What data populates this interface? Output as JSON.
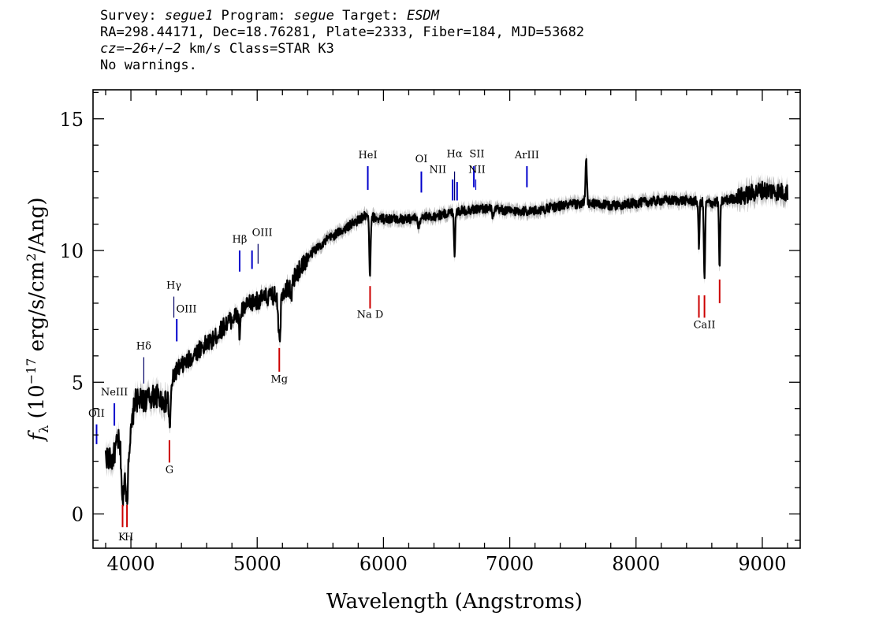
{
  "header": {
    "line1": [
      {
        "text": "Survey: ",
        "italic": false
      },
      {
        "text": "segue1",
        "italic": true
      },
      {
        "text": " Program: ",
        "italic": false
      },
      {
        "text": "segue",
        "italic": true
      },
      {
        "text": " Target: ",
        "italic": false
      },
      {
        "text": "ESDM",
        "italic": true
      }
    ],
    "line2": "RA=298.44171, Dec=18.76281, Plate=2333, Fiber=184, MJD=53682",
    "line3": [
      {
        "text": "cz=",
        "italic": true
      },
      {
        "text": "−26",
        "italic": true
      },
      {
        "text": "+/",
        "italic": false
      },
      {
        "text": "−2",
        "italic": true
      },
      {
        "text": " km/s Class=STAR K3",
        "italic": false
      }
    ],
    "line4": "No warnings."
  },
  "colors": {
    "flux": "#000000",
    "error_band": "#b4b4b4",
    "emission_marker": "#0000cc",
    "absorption_marker": "#cc0000"
  },
  "chart_data": {
    "type": "line",
    "xlabel": "Wavelength (Angstroms)",
    "ylabel": "f_λ (10^-17 erg/s/cm^2/Ang)",
    "ylabel_parts": {
      "f": "f",
      "sub": "λ",
      "pre": " (10",
      "sup1": "−17",
      "mid": " erg/s/cm",
      "sup2": "2",
      "post": "/Ang)"
    },
    "xlim": [
      3700,
      9300
    ],
    "ylim": [
      -1.3,
      16.1
    ],
    "xticks": [
      4000,
      5000,
      6000,
      7000,
      8000,
      9000
    ],
    "yticks": [
      0,
      5,
      10,
      15
    ],
    "x_minor_step": 200,
    "y_minor_step": 1,
    "spectrum_range": [
      3800,
      9200
    ],
    "continuum": [
      [
        3800,
        2.2
      ],
      [
        3850,
        2.0
      ],
      [
        3900,
        2.8
      ],
      [
        3950,
        1.5
      ],
      [
        4000,
        3.0
      ],
      [
        4030,
        4.3
      ],
      [
        4100,
        4.3
      ],
      [
        4200,
        4.5
      ],
      [
        4280,
        4.2
      ],
      [
        4350,
        5.4
      ],
      [
        4450,
        5.8
      ],
      [
        4550,
        6.3
      ],
      [
        4650,
        6.6
      ],
      [
        4750,
        7.2
      ],
      [
        4850,
        7.6
      ],
      [
        4950,
        8.0
      ],
      [
        5050,
        8.2
      ],
      [
        5150,
        8.3
      ],
      [
        5250,
        8.6
      ],
      [
        5350,
        9.4
      ],
      [
        5450,
        10.0
      ],
      [
        5550,
        10.4
      ],
      [
        5650,
        10.7
      ],
      [
        5750,
        11.0
      ],
      [
        5850,
        11.3
      ],
      [
        6000,
        11.2
      ],
      [
        6200,
        11.2
      ],
      [
        6400,
        11.3
      ],
      [
        6600,
        11.5
      ],
      [
        6800,
        11.6
      ],
      [
        7000,
        11.5
      ],
      [
        7200,
        11.5
      ],
      [
        7400,
        11.7
      ],
      [
        7600,
        11.8
      ],
      [
        7800,
        11.7
      ],
      [
        8000,
        11.8
      ],
      [
        8200,
        11.9
      ],
      [
        8400,
        11.9
      ],
      [
        8600,
        11.8
      ],
      [
        8800,
        12.0
      ],
      [
        9000,
        12.3
      ],
      [
        9200,
        12.2
      ]
    ],
    "features": [
      {
        "x": 3934,
        "depth": 1.7,
        "width": 9
      },
      {
        "x": 3969,
        "depth": 1.7,
        "width": 9
      },
      {
        "x": 4308,
        "depth": 1.3,
        "width": 10
      },
      {
        "x": 4861,
        "depth": 0.9,
        "width": 8
      },
      {
        "x": 5172,
        "depth": 1.3,
        "width": 10
      },
      {
        "x": 5183,
        "depth": 1.2,
        "width": 6
      },
      {
        "x": 5270,
        "depth": 0.6,
        "width": 8
      },
      {
        "x": 5893,
        "depth": 2.2,
        "width": 8
      },
      {
        "x": 6563,
        "depth": 1.7,
        "width": 6
      },
      {
        "x": 8498,
        "depth": 1.8,
        "width": 6
      },
      {
        "x": 8542,
        "depth": 3.0,
        "width": 7
      },
      {
        "x": 8662,
        "depth": 2.5,
        "width": 7
      },
      {
        "x": 7605,
        "depth": -1.6,
        "width": 8
      },
      {
        "x": 6280,
        "depth": 0.4,
        "width": 8
      },
      {
        "x": 6870,
        "depth": 0.3,
        "width": 10
      }
    ],
    "emission_lines": [
      {
        "label": "OII",
        "x": 3728,
        "y0": 2.65,
        "y1": 3.4,
        "lx": 3728,
        "ly": 3.7
      },
      {
        "label": "NeIII",
        "x": 3869,
        "y0": 3.35,
        "y1": 4.2,
        "lx": 3869,
        "ly": 4.5
      },
      {
        "label": "Hδ",
        "x": 4102,
        "y0": 4.95,
        "y1": 5.95,
        "lx": 4102,
        "ly": 6.25
      },
      {
        "label": "Hγ",
        "x": 4340,
        "y0": 7.45,
        "y1": 8.25,
        "lx": 4340,
        "ly": 8.55
      },
      {
        "label": "OIII",
        "x": 4363,
        "y0": 6.55,
        "y1": 7.4,
        "lx": 4440,
        "ly": 7.65
      },
      {
        "label": "Hβ",
        "x": 4861,
        "y0": 9.2,
        "y1": 10.0,
        "lx": 4861,
        "ly": 10.3
      },
      {
        "label": "OIII",
        "x": 4959,
        "y0": 9.3,
        "y1": 10.0,
        "lx": 5040,
        "ly": 10.55
      },
      {
        "label": "",
        "x": 5007,
        "y0": 9.5,
        "y1": 10.25,
        "lx": 5007,
        "ly": 0
      },
      {
        "label": "HeI",
        "x": 5876,
        "y0": 12.3,
        "y1": 13.2,
        "lx": 5876,
        "ly": 13.5
      },
      {
        "label": "OI",
        "x": 6300,
        "y0": 12.2,
        "y1": 13.0,
        "lx": 6300,
        "ly": 13.35
      },
      {
        "label": "NII",
        "x": 6548,
        "y0": 11.9,
        "y1": 12.7,
        "lx": 6430,
        "ly": 12.95
      },
      {
        "label": "Hα",
        "x": 6563,
        "y0": 11.9,
        "y1": 13.0,
        "lx": 6563,
        "ly": 13.55
      },
      {
        "label": "",
        "x": 6583,
        "y0": 11.9,
        "y1": 12.6,
        "lx": 6583,
        "ly": 0
      },
      {
        "label": "SII",
        "x": 6716,
        "y0": 12.4,
        "y1": 13.2,
        "lx": 6740,
        "ly": 13.55
      },
      {
        "label": "NII",
        "x": 6731,
        "y0": 12.3,
        "y1": 12.7,
        "lx": 6740,
        "ly": 12.95
      },
      {
        "label": "ArIII",
        "x": 7136,
        "y0": 12.4,
        "y1": 13.2,
        "lx": 7136,
        "ly": 13.5
      }
    ],
    "absorption_lines": [
      {
        "label": "K",
        "x": 3934,
        "y0": -0.5,
        "y1": 0.35,
        "lx": 3930,
        "ly": -1.0
      },
      {
        "label": "H",
        "x": 3969,
        "y0": -0.5,
        "y1": 0.35,
        "lx": 3985,
        "ly": -1.0
      },
      {
        "label": "G",
        "x": 4305,
        "y0": 1.95,
        "y1": 2.8,
        "lx": 4305,
        "ly": 1.55
      },
      {
        "label": "Mg",
        "x": 5175,
        "y0": 5.4,
        "y1": 6.3,
        "lx": 5175,
        "ly": 5.0
      },
      {
        "label": "Na D",
        "x": 5894,
        "y0": 7.8,
        "y1": 8.65,
        "lx": 5894,
        "ly": 7.45
      },
      {
        "label": "CaII",
        "x": 8498,
        "y0": 7.45,
        "y1": 8.3,
        "lx": 8542,
        "ly": 7.05
      },
      {
        "label": "",
        "x": 8542,
        "y0": 7.45,
        "y1": 8.3,
        "lx": 8542,
        "ly": 0
      },
      {
        "label": "",
        "x": 8662,
        "y0": 8.0,
        "y1": 8.9,
        "lx": 8662,
        "ly": 0
      }
    ]
  }
}
